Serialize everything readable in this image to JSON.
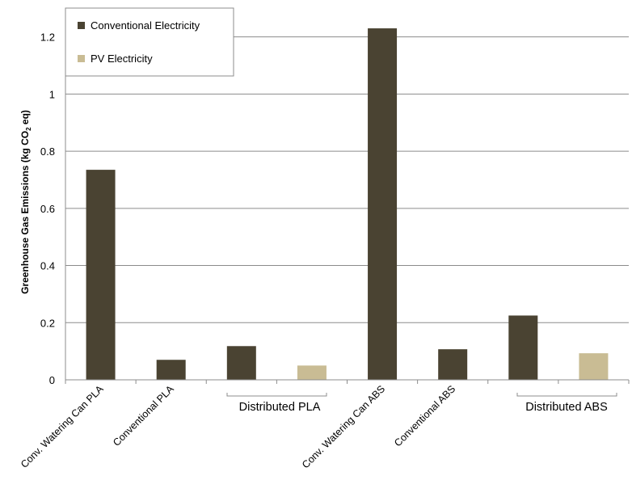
{
  "chart_data": {
    "type": "bar",
    "ylabel": "Greenhouse Gas Emissions (kg CO",
    "ylabel_sub": "2",
    "ylabel_end": " eq)",
    "ylim": [
      0,
      1.3
    ],
    "yticks": [
      "0",
      "0.2",
      "0.4",
      "0.6",
      "0.8",
      "1",
      "1.2"
    ],
    "ytick_values": [
      0,
      0.2,
      0.4,
      0.6,
      0.8,
      1.0,
      1.2
    ],
    "grid": true,
    "legend_position": "top-left",
    "categories": [
      "Conv. Watering Can PLA",
      "Conventional PLA",
      "",
      "",
      "Conv. Watering Can ABS",
      "Conventional ABS",
      "",
      ""
    ],
    "group_labels": [
      "Distributed PLA",
      "Distributed ABS"
    ],
    "series": [
      {
        "name": "Conventional Electricity",
        "color": "#4a4332",
        "values": [
          0.735,
          0.07,
          0.118,
          null,
          1.23,
          0.107,
          0.225,
          null
        ]
      },
      {
        "name": "PV Electricity",
        "color": "#c9bc94",
        "values": [
          null,
          null,
          null,
          0.05,
          null,
          null,
          null,
          0.093
        ]
      }
    ]
  }
}
